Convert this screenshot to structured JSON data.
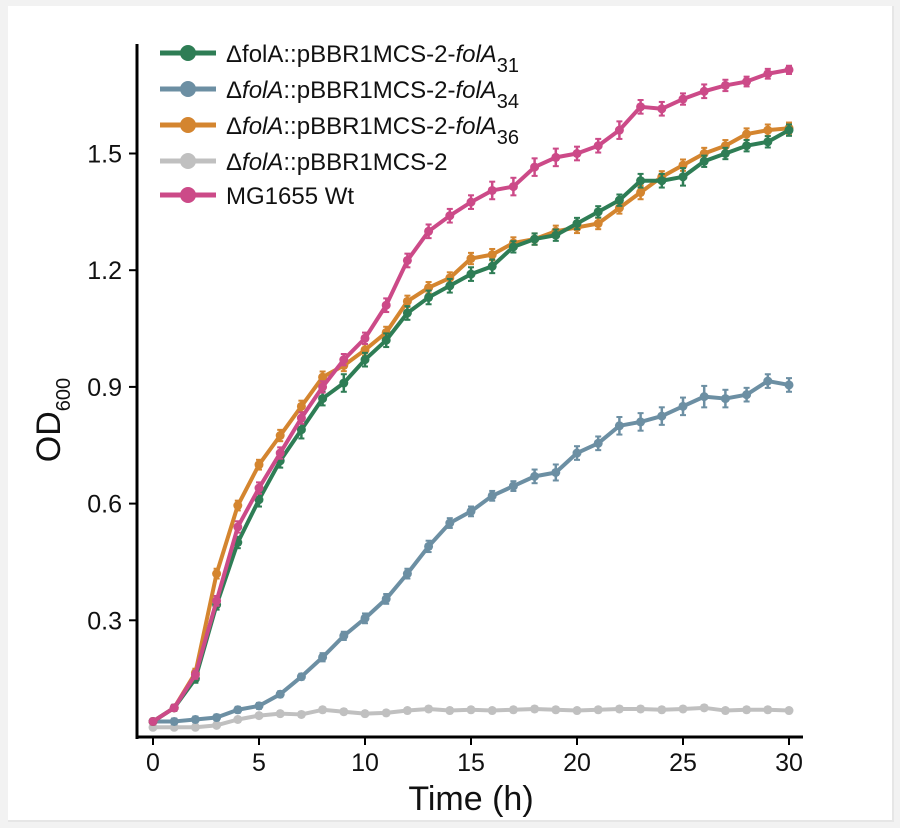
{
  "chart_data": {
    "type": "line",
    "xlabel": "Time (h)",
    "ylabel": {
      "main": "OD",
      "sub": "600"
    },
    "xlim": [
      0,
      30
    ],
    "ylim": [
      0,
      1.75
    ],
    "xticks": [
      0,
      5,
      10,
      15,
      20,
      25,
      30
    ],
    "xtick_labels": [
      "0",
      "5",
      "10",
      "15",
      "20",
      "25",
      "30"
    ],
    "yticks": [
      0.3,
      0.6,
      0.9,
      1.2,
      1.5
    ],
    "ytick_labels": [
      "0.3",
      "0.6",
      "0.9",
      "1.2",
      "1.5"
    ],
    "legend_position": "top-left",
    "x": [
      0,
      1,
      2,
      3,
      4,
      5,
      6,
      7,
      8,
      9,
      10,
      11,
      12,
      13,
      14,
      15,
      16,
      17,
      18,
      19,
      20,
      21,
      22,
      23,
      24,
      25,
      26,
      27,
      28,
      29,
      30
    ],
    "series": [
      {
        "name": "ΔfolA::pBBR1MCS-2-folA31",
        "legend": {
          "prefix": "ΔfolA::pBBR1MCS-2-",
          "italic": "folA",
          "sub": "31"
        },
        "color": "#2e7d55",
        "values": [
          0.04,
          0.075,
          0.15,
          0.34,
          0.5,
          0.61,
          0.71,
          0.79,
          0.87,
          0.91,
          0.97,
          1.02,
          1.09,
          1.13,
          1.16,
          1.19,
          1.21,
          1.26,
          1.28,
          1.29,
          1.32,
          1.35,
          1.38,
          1.43,
          1.43,
          1.44,
          1.48,
          1.5,
          1.52,
          1.53,
          1.56
        ],
        "errors": [
          0.005,
          0.005,
          0.008,
          0.01,
          0.012,
          0.015,
          0.015,
          0.02,
          0.015,
          0.02,
          0.015,
          0.015,
          0.015,
          0.015,
          0.015,
          0.015,
          0.015,
          0.012,
          0.012,
          0.012,
          0.012,
          0.012,
          0.012,
          0.015,
          0.015,
          0.02,
          0.012,
          0.012,
          0.012,
          0.012,
          0.012
        ]
      },
      {
        "name": "ΔfolA::pBBR1MCS-2-folA34",
        "legend": {
          "prefix": "Δ",
          "italic1": "folA",
          "mid": "::pBBR1MCS-2-",
          "italic": "folA",
          "sub": "34"
        },
        "color": "#6c8fa3",
        "values": [
          0.04,
          0.04,
          0.045,
          0.05,
          0.07,
          0.08,
          0.11,
          0.155,
          0.205,
          0.26,
          0.305,
          0.355,
          0.42,
          0.49,
          0.55,
          0.58,
          0.62,
          0.645,
          0.67,
          0.68,
          0.73,
          0.755,
          0.8,
          0.81,
          0.825,
          0.85,
          0.875,
          0.87,
          0.88,
          0.915,
          0.905
        ],
        "errors": [
          0.005,
          0.005,
          0.005,
          0.005,
          0.005,
          0.005,
          0.005,
          0.005,
          0.008,
          0.008,
          0.01,
          0.01,
          0.01,
          0.012,
          0.01,
          0.01,
          0.01,
          0.01,
          0.015,
          0.018,
          0.015,
          0.015,
          0.02,
          0.02,
          0.02,
          0.02,
          0.025,
          0.02,
          0.015,
          0.015,
          0.015
        ]
      },
      {
        "name": "ΔfolA::pBBR1MCS-2-folA36",
        "legend": {
          "prefix": "Δ",
          "italic1": "folA",
          "mid": "::pBBR1MCS-2-",
          "italic": "folA",
          "sub": "36"
        },
        "color": "#d4852f",
        "values": [
          0.04,
          0.075,
          0.165,
          0.42,
          0.595,
          0.7,
          0.775,
          0.85,
          0.925,
          0.955,
          0.995,
          1.04,
          1.12,
          1.155,
          1.18,
          1.23,
          1.24,
          1.27,
          1.28,
          1.3,
          1.31,
          1.32,
          1.36,
          1.4,
          1.44,
          1.47,
          1.5,
          1.52,
          1.55,
          1.56,
          1.565
        ],
        "errors": [
          0.005,
          0.005,
          0.008,
          0.01,
          0.01,
          0.01,
          0.012,
          0.012,
          0.012,
          0.012,
          0.012,
          0.012,
          0.012,
          0.012,
          0.012,
          0.012,
          0.012,
          0.012,
          0.012,
          0.012,
          0.012,
          0.012,
          0.012,
          0.015,
          0.012,
          0.012,
          0.012,
          0.012,
          0.012,
          0.012,
          0.012
        ]
      },
      {
        "name": "ΔfolA::pBBR1MCS-2",
        "legend": {
          "prefix": "Δ",
          "italic1": "folA",
          "mid": "::pBBR1MCS-2"
        },
        "color": "#c0c0c0",
        "values": [
          0.025,
          0.025,
          0.025,
          0.03,
          0.045,
          0.055,
          0.06,
          0.058,
          0.07,
          0.065,
          0.06,
          0.062,
          0.068,
          0.072,
          0.068,
          0.07,
          0.068,
          0.07,
          0.072,
          0.07,
          0.068,
          0.07,
          0.072,
          0.072,
          0.07,
          0.072,
          0.075,
          0.068,
          0.07,
          0.07,
          0.068
        ],
        "errors": [
          0.003,
          0.003,
          0.003,
          0.003,
          0.004,
          0.004,
          0.004,
          0.004,
          0.004,
          0.004,
          0.004,
          0.004,
          0.004,
          0.004,
          0.004,
          0.004,
          0.004,
          0.004,
          0.004,
          0.004,
          0.004,
          0.004,
          0.004,
          0.004,
          0.004,
          0.004,
          0.004,
          0.004,
          0.004,
          0.004,
          0.004
        ]
      },
      {
        "name": "MG1655 Wt",
        "legend": {
          "prefix": "MG1655 Wt"
        },
        "color": "#cc4a88",
        "values": [
          0.04,
          0.075,
          0.16,
          0.35,
          0.54,
          0.64,
          0.73,
          0.82,
          0.9,
          0.97,
          1.025,
          1.11,
          1.225,
          1.3,
          1.34,
          1.375,
          1.405,
          1.415,
          1.465,
          1.49,
          1.5,
          1.52,
          1.56,
          1.62,
          1.615,
          1.64,
          1.66,
          1.675,
          1.685,
          1.705,
          1.715
        ],
        "errors": [
          0.005,
          0.005,
          0.008,
          0.01,
          0.012,
          0.012,
          0.012,
          0.012,
          0.012,
          0.012,
          0.012,
          0.015,
          0.015,
          0.015,
          0.015,
          0.015,
          0.02,
          0.02,
          0.02,
          0.02,
          0.015,
          0.015,
          0.02,
          0.015,
          0.015,
          0.012,
          0.015,
          0.012,
          0.01,
          0.01,
          0.008
        ]
      }
    ]
  }
}
